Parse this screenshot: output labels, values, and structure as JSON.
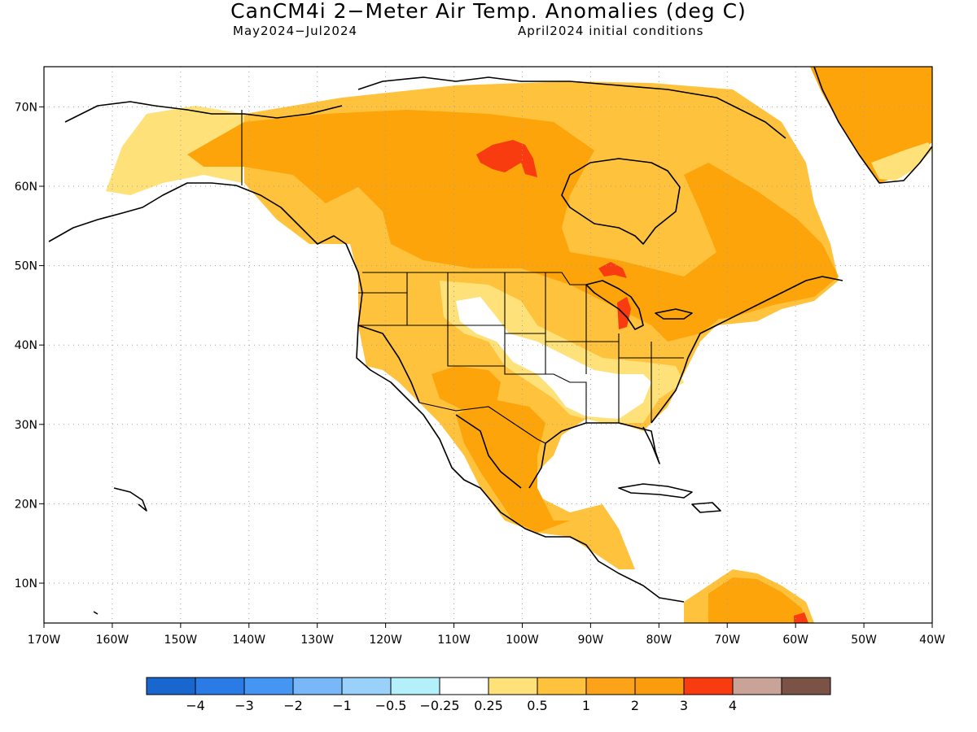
{
  "title": "CanCM4i 2−Meter Air Temp. Anomalies (deg C)",
  "subtitle_left": "May2024−Jul2024",
  "subtitle_right": "April2024 initial conditions",
  "colors": {
    "pos_025": "#ffe17a",
    "pos_05": "#fec23d",
    "pos_1": "#fca40a",
    "pos_2": "#fba21a",
    "pos_3": "#f83c10",
    "coast": "#000000",
    "grid": "#a0a0a0"
  },
  "lat_labels": [
    "10N",
    "20N",
    "30N",
    "40N",
    "50N",
    "60N",
    "70N"
  ],
  "lon_labels": [
    "170W",
    "160W",
    "150W",
    "140W",
    "130W",
    "120W",
    "110W",
    "100W",
    "90W",
    "80W",
    "70W",
    "60W",
    "50W",
    "40W"
  ],
  "colorbar": {
    "bins": [
      {
        "color": "#1a66cf"
      },
      {
        "color": "#2b7be6"
      },
      {
        "color": "#4496f2"
      },
      {
        "color": "#78b7f8"
      },
      {
        "color": "#99d1fb"
      },
      {
        "color": "#b4f0fa"
      },
      {
        "color": "#ffffff"
      },
      {
        "color": "#ffe17a"
      },
      {
        "color": "#fec23d"
      },
      {
        "color": "#fca31a"
      },
      {
        "color": "#fa9c0c"
      },
      {
        "color": "#f83c10"
      },
      {
        "color": "#c9a298"
      },
      {
        "color": "#7a5246"
      }
    ],
    "labels": [
      "−4",
      "−3",
      "−2",
      "−1",
      "−0.5",
      "−0.25",
      "0.25",
      "0.5",
      "1",
      "2",
      "3",
      "4"
    ]
  }
}
